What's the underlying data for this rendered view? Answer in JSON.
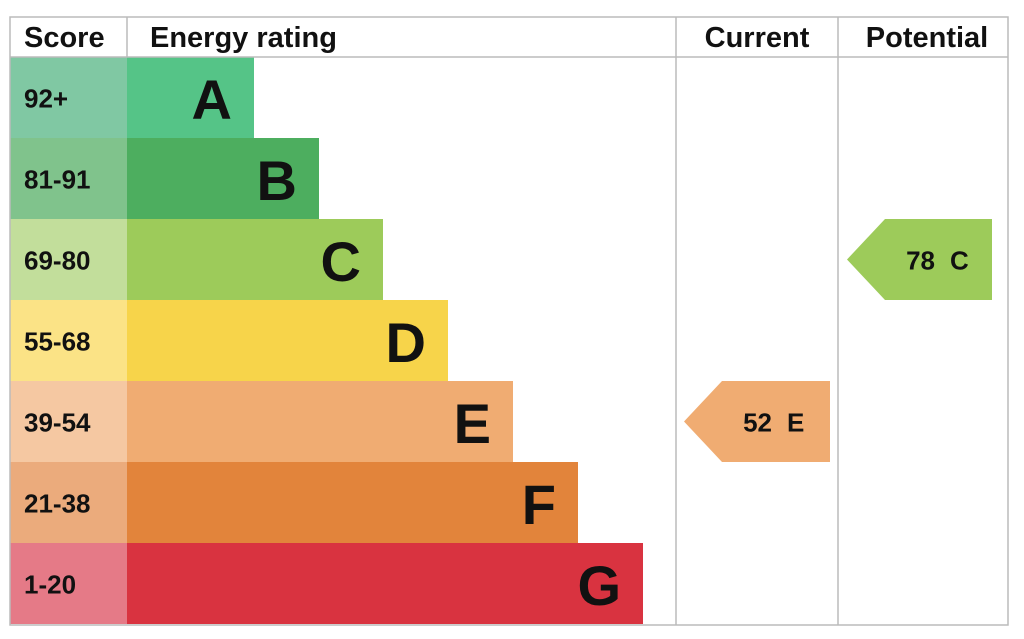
{
  "header": {
    "score": "Score",
    "rating": "Energy rating",
    "current": "Current",
    "potential": "Potential"
  },
  "rows": [
    {
      "score": "92+",
      "letter": "A"
    },
    {
      "score": "81-91",
      "letter": "B"
    },
    {
      "score": "69-80",
      "letter": "C"
    },
    {
      "score": "55-68",
      "letter": "D"
    },
    {
      "score": "39-54",
      "letter": "E"
    },
    {
      "score": "21-38",
      "letter": "F"
    },
    {
      "score": "1-20",
      "letter": "G"
    }
  ],
  "current": {
    "value": 52,
    "letter": "E"
  },
  "potential": {
    "value": 78,
    "letter": "C"
  }
}
